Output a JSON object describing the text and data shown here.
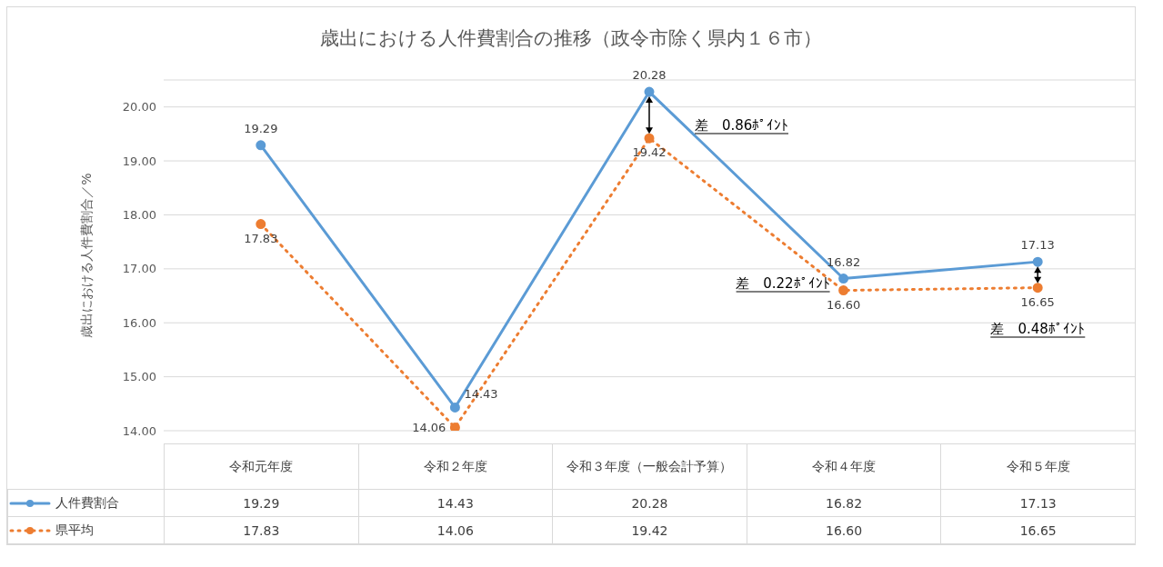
{
  "chart_data": {
    "type": "line",
    "title": "歳出における人件費割合の推移（政令市除く県内１６市）",
    "ylabel": "歳出における人件費割合／%",
    "categories": [
      "令和元年度",
      "令和２年度",
      "令和３年度（一般会計予算）",
      "令和４年度",
      "令和５年度"
    ],
    "series": [
      {
        "name": "人件費割合",
        "color": "#5b9bd5",
        "values": [
          19.29,
          14.43,
          20.28,
          16.82,
          17.13
        ],
        "value_labels": [
          "19.29",
          "14.43",
          "20.28",
          "16.82",
          "17.13"
        ],
        "line_style": "solid"
      },
      {
        "name": "県平均",
        "color": "#ed7d31",
        "values": [
          17.83,
          14.06,
          19.42,
          16.6,
          16.65
        ],
        "value_labels": [
          "17.83",
          "14.06",
          "19.42",
          "16.60",
          "16.65"
        ],
        "line_style": "dotted"
      }
    ],
    "ylim": [
      14,
      20.5
    ],
    "yticks": [
      {
        "value": 14,
        "label": "14.00"
      },
      {
        "value": 15,
        "label": "15.00"
      },
      {
        "value": 16,
        "label": "16.00"
      },
      {
        "value": 17,
        "label": "17.00"
      },
      {
        "value": 18,
        "label": "18.00"
      },
      {
        "value": 19,
        "label": "19.00"
      },
      {
        "value": 20,
        "label": "20.00"
      }
    ],
    "grid": "y",
    "marker": "circle",
    "legend": "bottom",
    "annotations": [
      "差　0.86ﾎﾟｲﾝﾄ",
      "差　0.22ﾎﾟｲﾝﾄ",
      "差　0.48ﾎﾟｲﾝﾄ"
    ]
  }
}
